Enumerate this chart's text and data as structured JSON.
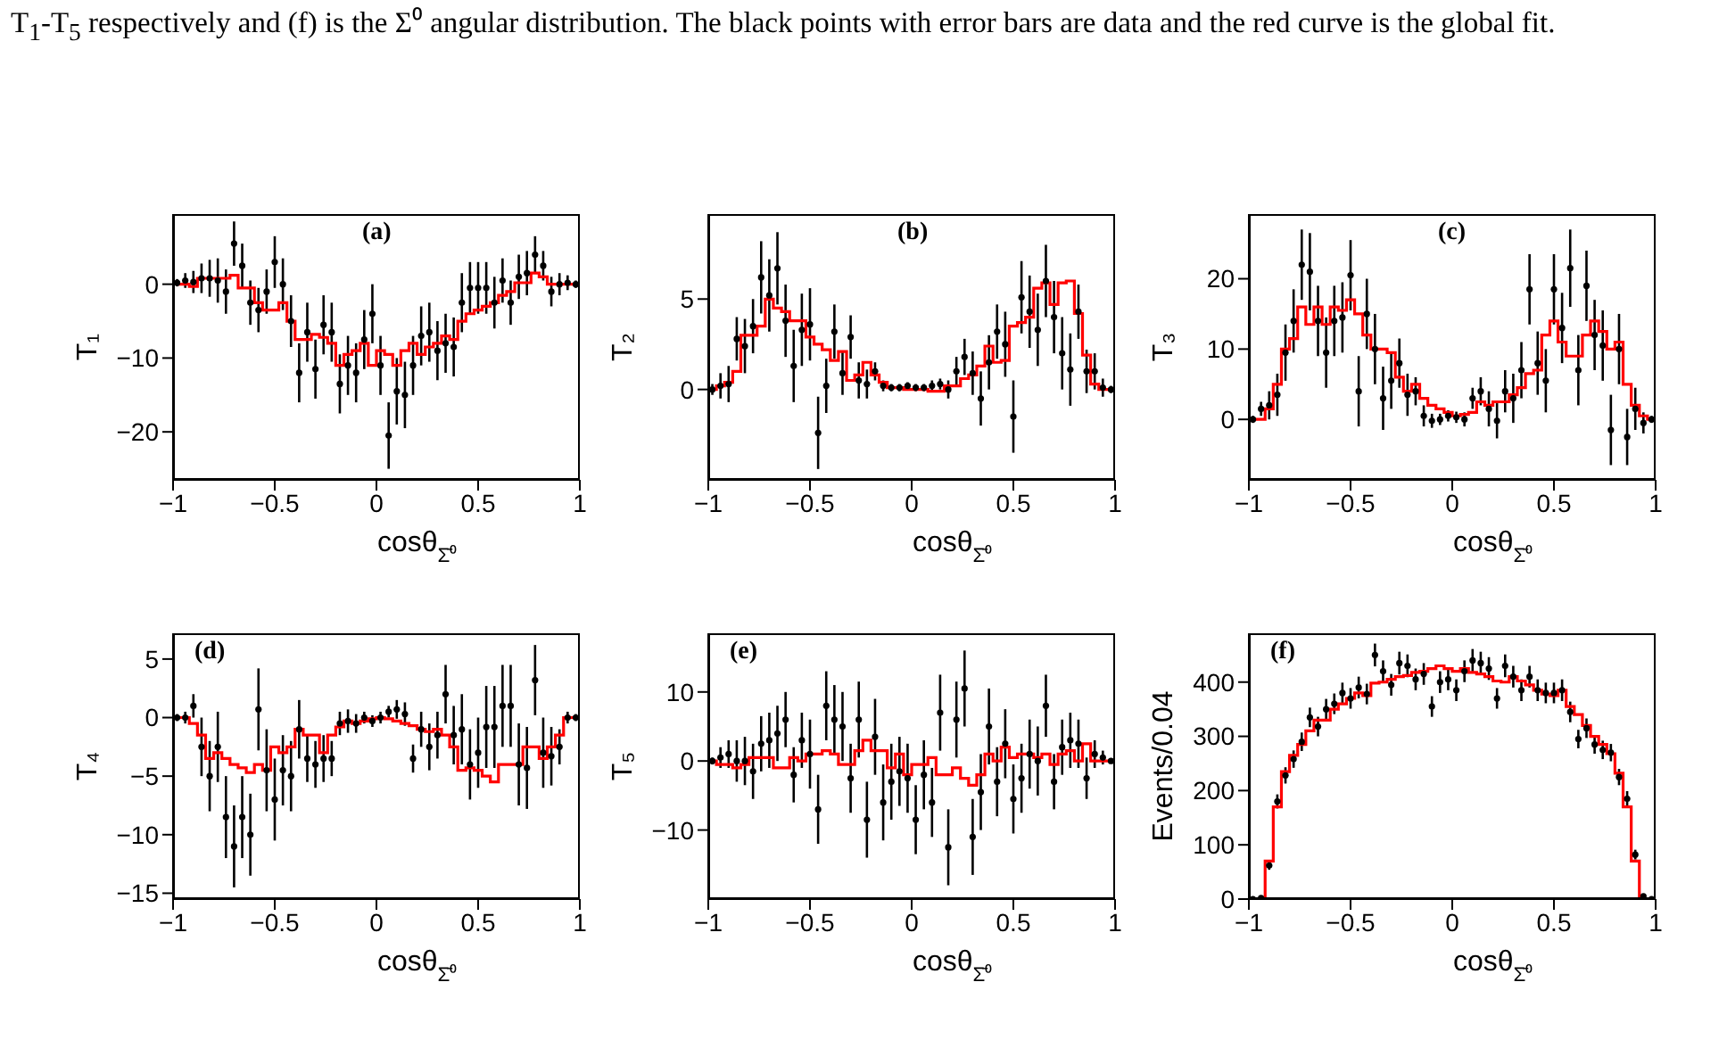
{
  "chart_data": [
    {
      "type": "scatter",
      "annotations": [
        "(a)",
        "T$_{1}$-T$_{5}$ respectively and (f) is the Σ⁰ angular distribution. The black points with error bars are data and the red curve is the global fit."
      ],
      "xlabel": "cosθ$_{Σ̄⁰}$",
      "ylabel": "T₁",
      "xlim": [
        -1,
        1
      ],
      "xticks": [
        -1,
        -0.5,
        0,
        0.5,
        1
      ],
      "ylim": [
        -26.5,
        9.5
      ],
      "yticks": [
        -20,
        -10,
        0
      ],
      "marker": "circle",
      "x": [
        -0.98,
        -0.94,
        -0.9,
        -0.86,
        -0.82,
        -0.78,
        -0.74,
        -0.7,
        -0.66,
        -0.62,
        -0.58,
        -0.54,
        -0.5,
        -0.46,
        -0.42,
        -0.38,
        -0.34,
        -0.3,
        -0.26,
        -0.22,
        -0.18,
        -0.14,
        -0.1,
        -0.06,
        -0.02,
        0.02,
        0.06,
        0.1,
        0.14,
        0.18,
        0.22,
        0.26,
        0.3,
        0.34,
        0.38,
        0.42,
        0.46,
        0.5,
        0.54,
        0.58,
        0.62,
        0.66,
        0.7,
        0.74,
        0.78,
        0.82,
        0.86,
        0.9,
        0.94,
        0.98
      ],
      "series": [
        {
          "color": "#000000",
          "values": [
            0.2,
            0.5,
            0.3,
            0.8,
            0.8,
            0.5,
            -1,
            5.5,
            2.5,
            -2.5,
            -3.5,
            -1,
            3,
            0,
            -5,
            -12,
            -6.5,
            -11.5,
            -5.5,
            -6.5,
            -13.5,
            -11,
            -12,
            -7.5,
            -4,
            -11,
            -20.5,
            -14.5,
            -15,
            -11,
            -7,
            -6.5,
            -9,
            -8,
            -8.5,
            -2.5,
            -0.5,
            -0.5,
            -0.5,
            -2.5,
            0.5,
            -2.5,
            1,
            1.5,
            4,
            2.5,
            -1,
            0,
            0.2,
            0
          ],
          "errors": [
            0.5,
            1,
            1.5,
            2,
            2.5,
            3,
            3,
            3,
            3,
            3,
            3,
            3,
            3.5,
            3.5,
            3.5,
            4,
            4,
            4,
            4,
            4,
            4,
            4,
            4,
            4,
            4,
            4,
            4.5,
            4.5,
            4.5,
            4,
            4,
            4,
            4,
            4,
            4,
            4,
            3.5,
            3.5,
            3.5,
            3.5,
            3,
            3,
            3,
            3,
            2.5,
            2,
            2,
            1.5,
            1,
            0.5
          ]
        },
        {
          "type": "step",
          "marker": "none",
          "color": "#ff0000",
          "values": [
            0,
            0,
            -0.3,
            0.8,
            0.8,
            0.8,
            0.8,
            1.2,
            -0.5,
            -0.5,
            -2.5,
            -3.5,
            -3.5,
            -2.5,
            -5,
            -7.5,
            -7.5,
            -6.8,
            -7.2,
            -8,
            -11,
            -9.5,
            -9,
            -8,
            -11,
            -9,
            -9.5,
            -11,
            -9,
            -8,
            -9.5,
            -8.5,
            -8,
            -7,
            -7.5,
            -5,
            -4,
            -3.5,
            -3,
            -2.5,
            -1.5,
            -1,
            0.2,
            0.2,
            1.5,
            1,
            0,
            0,
            0,
            0
          ]
        }
      ]
    },
    {
      "type": "scatter",
      "annotations": [
        "(b)"
      ],
      "xlabel": "cosθ$_{Σ̄⁰}$",
      "ylabel": "T₂",
      "xlim": [
        -1,
        1
      ],
      "xticks": [
        -1,
        -0.5,
        0,
        0.5,
        1
      ],
      "ylim": [
        -5,
        9.7
      ],
      "yticks": [
        0,
        5
      ],
      "marker": "circle",
      "x": [
        -0.98,
        -0.94,
        -0.9,
        -0.86,
        -0.82,
        -0.78,
        -0.74,
        -0.7,
        -0.66,
        -0.62,
        -0.58,
        -0.54,
        -0.5,
        -0.46,
        -0.42,
        -0.38,
        -0.34,
        -0.3,
        -0.26,
        -0.22,
        -0.18,
        -0.14,
        -0.1,
        -0.06,
        -0.02,
        0.02,
        0.06,
        0.1,
        0.14,
        0.18,
        0.22,
        0.26,
        0.3,
        0.34,
        0.38,
        0.42,
        0.46,
        0.5,
        0.54,
        0.58,
        0.62,
        0.66,
        0.7,
        0.74,
        0.78,
        0.82,
        0.86,
        0.9,
        0.94,
        0.98
      ],
      "series": [
        {
          "color": "#000000",
          "values": [
            0,
            0.2,
            0.3,
            2.8,
            2.4,
            3.5,
            6.2,
            5.2,
            6.7,
            3.8,
            1.3,
            3.3,
            3.6,
            -2.4,
            0.2,
            3.2,
            0.9,
            2.9,
            0.5,
            0.3,
            1,
            0.2,
            0.1,
            0.1,
            0.2,
            0.1,
            0.1,
            0.2,
            0.3,
            0,
            1,
            1.8,
            0.9,
            -0.5,
            1.5,
            3.2,
            2.5,
            -1.5,
            5.1,
            4.3,
            3.3,
            6,
            4,
            2,
            1.1,
            4.3,
            1,
            1,
            0.1,
            0
          ],
          "errors": [
            0.3,
            0.7,
            1,
            1.2,
            1.5,
            1.5,
            2,
            2,
            2,
            2,
            2,
            2,
            2,
            2,
            1.5,
            1.5,
            1.2,
            1.2,
            1,
            0.8,
            0.5,
            0.3,
            0.2,
            0.2,
            0.2,
            0.2,
            0.2,
            0.3,
            0.3,
            0.5,
            0.8,
            1,
            1.2,
            1.5,
            1.5,
            1.5,
            1.8,
            2,
            2,
            2,
            2,
            2,
            2,
            2,
            2,
            1.5,
            1.2,
            1,
            0.5,
            0.2
          ]
        },
        {
          "type": "step",
          "marker": "none",
          "color": "#ff0000",
          "values": [
            0,
            0.2,
            0.4,
            1,
            3,
            3,
            3.5,
            5,
            4.5,
            4.3,
            3.8,
            3.8,
            2.9,
            2.5,
            2.2,
            1.6,
            2.1,
            0.5,
            0.8,
            1.5,
            0.8,
            0.4,
            0.1,
            0.1,
            0,
            0,
            0,
            -0.1,
            -0.1,
            0.2,
            0.2,
            0.6,
            0.8,
            1.3,
            2.4,
            1.5,
            1.6,
            3.5,
            3.7,
            4,
            5.6,
            5.9,
            4.7,
            5.9,
            6,
            4.2,
            1.9,
            0.3,
            0,
            0
          ]
        }
      ]
    },
    {
      "type": "scatter",
      "annotations": [
        "(c)"
      ],
      "xlabel": "cosθ$_{Σ̄⁰}$",
      "ylabel": "T₃",
      "xlim": [
        -1,
        1
      ],
      "xticks": [
        -1,
        -0.5,
        0,
        0.5,
        1
      ],
      "ylim": [
        -8.6,
        29.2
      ],
      "yticks": [
        0,
        10,
        20
      ],
      "marker": "circle",
      "x": [
        -0.98,
        -0.94,
        -0.9,
        -0.86,
        -0.82,
        -0.78,
        -0.74,
        -0.7,
        -0.66,
        -0.62,
        -0.58,
        -0.54,
        -0.5,
        -0.46,
        -0.42,
        -0.38,
        -0.34,
        -0.3,
        -0.26,
        -0.22,
        -0.18,
        -0.14,
        -0.1,
        -0.06,
        -0.02,
        0.02,
        0.06,
        0.1,
        0.14,
        0.18,
        0.22,
        0.26,
        0.3,
        0.34,
        0.38,
        0.42,
        0.46,
        0.5,
        0.54,
        0.58,
        0.62,
        0.66,
        0.7,
        0.74,
        0.78,
        0.82,
        0.86,
        0.9,
        0.94,
        0.98
      ],
      "series": [
        {
          "color": "#000000",
          "values": [
            0,
            1.5,
            2,
            3.5,
            9.5,
            14,
            22,
            21,
            14,
            9.5,
            14,
            14.5,
            20.5,
            4,
            15,
            10,
            3,
            5.5,
            8,
            3.5,
            4,
            0.5,
            -0.2,
            0,
            0.5,
            0.3,
            0,
            3,
            4,
            1.5,
            -0.2,
            4,
            3,
            7,
            18.5,
            8,
            5.5,
            18.5,
            13,
            21.5,
            7,
            19,
            12,
            10.5,
            -1.5,
            10,
            -2.5,
            1.5,
            -0.5,
            0
          ],
          "errors": [
            0.5,
            1,
            2,
            3,
            4,
            4.5,
            5,
            5.5,
            5,
            5,
            5,
            5,
            5,
            5,
            5,
            5,
            4.5,
            4,
            3.5,
            3,
            2,
            1.5,
            1,
            0.8,
            0.8,
            0.8,
            1,
            1.5,
            2,
            2.5,
            2.5,
            3,
            3.5,
            4,
            5,
            4.5,
            4.5,
            5,
            5,
            5.5,
            5,
            5,
            5,
            5,
            5,
            5,
            4,
            3,
            1.5,
            0.5
          ]
        },
        {
          "type": "step",
          "marker": "none",
          "color": "#ff0000",
          "values": [
            0,
            0,
            1.5,
            5,
            10,
            11.5,
            16,
            13.5,
            16,
            13.5,
            16,
            15.5,
            17,
            15,
            12,
            10,
            10,
            9.5,
            6,
            4,
            5,
            3,
            2,
            1.5,
            1,
            0.5,
            0.7,
            1,
            2.5,
            2,
            2.5,
            2.5,
            3.5,
            4.5,
            6.5,
            7,
            12,
            14,
            11,
            9,
            9,
            12,
            14,
            12.5,
            10,
            11,
            5,
            2,
            0.5,
            0
          ]
        }
      ]
    },
    {
      "type": "scatter",
      "annotations": [
        "(d)"
      ],
      "xlabel": "cosθ$_{Σ̄⁰}$",
      "ylabel": "T₄",
      "xlim": [
        -1,
        1
      ],
      "xticks": [
        -1,
        -0.5,
        0,
        0.5,
        1
      ],
      "ylim": [
        -15.5,
        7.2
      ],
      "yticks": [
        -15,
        -10,
        -5,
        0,
        5
      ],
      "marker": "circle",
      "x": [
        -0.98,
        -0.94,
        -0.9,
        -0.86,
        -0.82,
        -0.78,
        -0.74,
        -0.7,
        -0.66,
        -0.62,
        -0.58,
        -0.54,
        -0.5,
        -0.46,
        -0.42,
        -0.38,
        -0.34,
        -0.3,
        -0.26,
        -0.22,
        -0.18,
        -0.14,
        -0.1,
        -0.06,
        -0.02,
        0.02,
        0.06,
        0.1,
        0.14,
        0.18,
        0.22,
        0.26,
        0.3,
        0.34,
        0.38,
        0.42,
        0.46,
        0.5,
        0.54,
        0.58,
        0.62,
        0.66,
        0.7,
        0.74,
        0.78,
        0.82,
        0.86,
        0.9,
        0.94,
        0.98
      ],
      "series": [
        {
          "color": "#000000",
          "values": [
            0,
            0,
            1,
            -2.5,
            -5,
            -2.5,
            -8.5,
            -11,
            -8.5,
            -10,
            0.7,
            -4.5,
            -7,
            -4.5,
            -5,
            -1,
            -3.5,
            -4,
            -3.5,
            -3.5,
            -0.5,
            -0.3,
            -0.5,
            0,
            -0.3,
            0,
            0.5,
            0.7,
            0.3,
            -3.5,
            -1,
            -2.5,
            -1.5,
            2,
            -1.5,
            -1,
            -4,
            -3,
            -0.8,
            -0.8,
            1,
            1,
            -4,
            -4.3,
            3.2,
            -3,
            -3.3,
            -2.5,
            0,
            0
          ],
          "errors": [
            0.3,
            0.5,
            1,
            2.5,
            3,
            3,
            3.5,
            3.5,
            3.5,
            3.5,
            3.5,
            3.5,
            3.5,
            3,
            3,
            2.5,
            2,
            2,
            2,
            1.5,
            1,
            1,
            0.8,
            0.5,
            0.5,
            0.5,
            0.5,
            0.8,
            1,
            1.2,
            1.5,
            2,
            2,
            2.5,
            2.5,
            3,
            3,
            3,
            3.5,
            3.5,
            3.5,
            3.5,
            3.5,
            3.5,
            3,
            3,
            2.5,
            1.5,
            0.5,
            0.3
          ]
        },
        {
          "type": "step",
          "marker": "none",
          "color": "#ff0000",
          "values": [
            0,
            0,
            -0.5,
            -1.5,
            -3.5,
            -3,
            -3.5,
            -4,
            -4.3,
            -4.7,
            -4,
            -4.5,
            -2.5,
            -3,
            -2.5,
            -1,
            -1.5,
            -1.5,
            -3,
            -1.5,
            -0.8,
            -0.3,
            -0.5,
            -0.3,
            -0.1,
            0,
            -0.1,
            -0.3,
            -0.5,
            -0.7,
            -1,
            -1.2,
            -1,
            -1.5,
            -2.5,
            -4.5,
            -4.3,
            -4.5,
            -5,
            -5.5,
            -4,
            -4,
            -4,
            -2.5,
            -2.5,
            -3.5,
            -2.5,
            -1.5,
            0,
            0
          ]
        }
      ]
    },
    {
      "type": "scatter",
      "annotations": [
        "(e)"
      ],
      "xlabel": "cosθ$_{Σ̄⁰}$",
      "ylabel": "T₅",
      "xlim": [
        -1,
        1
      ],
      "xticks": [
        -1,
        -0.5,
        0,
        0.5,
        1
      ],
      "ylim": [
        -20,
        18.5
      ],
      "yticks": [
        -10,
        0,
        10
      ],
      "marker": "circle",
      "x": [
        -0.98,
        -0.94,
        -0.9,
        -0.86,
        -0.82,
        -0.78,
        -0.74,
        -0.7,
        -0.66,
        -0.62,
        -0.58,
        -0.54,
        -0.5,
        -0.46,
        -0.42,
        -0.38,
        -0.34,
        -0.3,
        -0.26,
        -0.22,
        -0.18,
        -0.14,
        -0.1,
        -0.06,
        -0.02,
        0.02,
        0.06,
        0.1,
        0.14,
        0.18,
        0.22,
        0.26,
        0.3,
        0.34,
        0.38,
        0.42,
        0.46,
        0.5,
        0.54,
        0.58,
        0.62,
        0.66,
        0.7,
        0.74,
        0.78,
        0.82,
        0.86,
        0.9,
        0.94,
        0.98
      ],
      "series": [
        {
          "color": "#000000",
          "values": [
            0,
            0.5,
            1,
            0,
            0,
            -1.5,
            2.5,
            3,
            4,
            6,
            -2,
            3,
            1,
            -7,
            8,
            6,
            5,
            -2.5,
            6,
            -8.5,
            3.5,
            -6,
            -3,
            -1.5,
            -2.5,
            -8.5,
            -2,
            -6,
            7,
            -12.5,
            6,
            10.5,
            -11,
            -4.5,
            5,
            -3,
            2.5,
            -5.5,
            -2.5,
            1,
            0,
            8,
            -3,
            2,
            3,
            2.5,
            -2.5,
            1,
            0.5,
            0
          ],
          "errors": [
            0.5,
            1.5,
            2,
            3,
            3.5,
            4,
            4,
            4,
            4,
            4,
            4,
            4,
            5,
            5,
            5,
            5,
            5,
            5,
            5.5,
            5.5,
            5.5,
            5.5,
            5.5,
            5,
            5,
            5,
            5,
            5,
            5.5,
            5.5,
            5.5,
            5.5,
            5.5,
            5.5,
            5.5,
            5,
            5,
            5,
            5,
            5,
            5,
            4.5,
            4,
            4,
            4,
            3.5,
            3,
            2,
            1,
            0.3
          ]
        },
        {
          "type": "step",
          "marker": "none",
          "color": "#ff0000",
          "values": [
            0,
            -0.5,
            -0.5,
            -1,
            -0.5,
            0.5,
            0.5,
            0.5,
            -1,
            -1,
            0.5,
            0,
            1,
            1,
            1.5,
            1,
            -0.5,
            -0.5,
            1.5,
            3,
            1.5,
            1.5,
            -1,
            1,
            -2,
            -0.5,
            -0.5,
            0.5,
            -2,
            -2,
            -1,
            -2.5,
            -3.5,
            -2,
            1,
            0,
            2,
            0.5,
            1,
            1,
            0.5,
            1,
            -0.5,
            1,
            1.5,
            0,
            2.5,
            0,
            0,
            0
          ]
        }
      ]
    },
    {
      "type": "scatter",
      "annotations": [
        "(f)"
      ],
      "xlabel": "cosθ$_{Σ̄⁰}$",
      "ylabel": "Events/0.04",
      "xlim": [
        -1,
        1
      ],
      "xticks": [
        -1,
        -0.5,
        0,
        0.5,
        1
      ],
      "ylim": [
        0,
        490
      ],
      "yticks": [
        0,
        100,
        200,
        300,
        400
      ],
      "marker": "circle",
      "x": [
        -0.98,
        -0.94,
        -0.9,
        -0.86,
        -0.82,
        -0.78,
        -0.74,
        -0.7,
        -0.66,
        -0.62,
        -0.58,
        -0.54,
        -0.5,
        -0.46,
        -0.42,
        -0.38,
        -0.34,
        -0.3,
        -0.26,
        -0.22,
        -0.18,
        -0.14,
        -0.1,
        -0.06,
        -0.02,
        0.02,
        0.06,
        0.1,
        0.14,
        0.18,
        0.22,
        0.26,
        0.3,
        0.34,
        0.38,
        0.42,
        0.46,
        0.5,
        0.54,
        0.58,
        0.62,
        0.66,
        0.7,
        0.74,
        0.78,
        0.82,
        0.86,
        0.9,
        0.94,
        0.98
      ],
      "series": [
        {
          "color": "#000000",
          "values": [
            0,
            2,
            62,
            180,
            228,
            258,
            290,
            335,
            318,
            350,
            360,
            380,
            370,
            390,
            378,
            450,
            420,
            395,
            435,
            430,
            405,
            415,
            355,
            400,
            405,
            385,
            420,
            440,
            435,
            425,
            370,
            430,
            410,
            385,
            410,
            385,
            380,
            380,
            385,
            345,
            295,
            315,
            285,
            275,
            270,
            225,
            185,
            82,
            5,
            0
          ],
          "errors": [
            null,
            null,
            8,
            13,
            15,
            16,
            17,
            18,
            18,
            19,
            19,
            19,
            19,
            20,
            19,
            21,
            20,
            20,
            21,
            21,
            20,
            20,
            19,
            20,
            20,
            20,
            20,
            21,
            21,
            21,
            19,
            21,
            20,
            20,
            20,
            20,
            19,
            19,
            20,
            19,
            17,
            18,
            17,
            17,
            16,
            15,
            14,
            9,
            null,
            null
          ]
        },
        {
          "type": "step",
          "marker": "none",
          "color": "#ff0000",
          "values": [
            0,
            0,
            70,
            170,
            235,
            265,
            285,
            310,
            330,
            330,
            350,
            360,
            370,
            380,
            375,
            398,
            400,
            405,
            410,
            412,
            418,
            420,
            425,
            430,
            425,
            420,
            425,
            418,
            415,
            410,
            402,
            400,
            410,
            402,
            395,
            385,
            378,
            375,
            385,
            355,
            340,
            320,
            300,
            285,
            268,
            232,
            170,
            70,
            0,
            0
          ]
        }
      ]
    }
  ]
}
